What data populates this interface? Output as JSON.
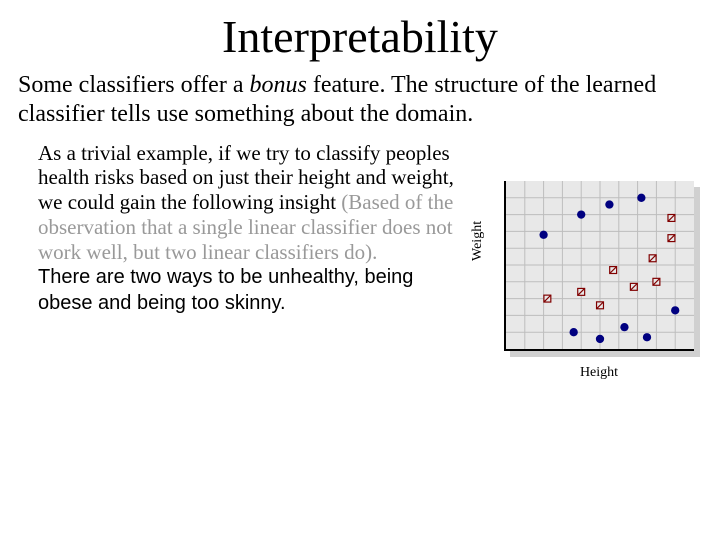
{
  "title": "Interpretability",
  "intro": {
    "part1": "Some classifiers offer a ",
    "bonus": "bonus",
    "part2": " feature. The structure of the learned classifier tells use something about the domain."
  },
  "example": {
    "black1": "As a trivial example, if we try to classify peoples health risks based on just their height and weight, we could gain the following insight ",
    "grey": "(Based of the observation that a single linear classifier does not work well, but two linear classifiers do).",
    "black2": "There are two ways to be unhealthy, being obese and being too skinny."
  },
  "chart": {
    "xlabel": "Height",
    "ylabel": "Weight",
    "background": "#e8e8e8",
    "shadow": "#d0d0d0",
    "grid_color": "#bdbdbd",
    "axis_color": "#000000",
    "nx": 10,
    "ny": 10,
    "solid_color": "#000080",
    "open_stroke": "#800000",
    "marker_r": 4.2,
    "open_size": 7,
    "solid_points": [
      [
        2.0,
        6.8
      ],
      [
        4.0,
        8.0
      ],
      [
        5.5,
        8.6
      ],
      [
        7.2,
        9.0
      ],
      [
        3.6,
        1.0
      ],
      [
        5.0,
        0.6
      ],
      [
        6.3,
        1.3
      ],
      [
        7.5,
        0.7
      ],
      [
        9.0,
        2.3
      ]
    ],
    "open_points": [
      [
        2.2,
        3.0
      ],
      [
        4.0,
        3.4
      ],
      [
        5.0,
        2.6
      ],
      [
        5.7,
        4.7
      ],
      [
        6.8,
        3.7
      ],
      [
        7.8,
        5.4
      ],
      [
        8.0,
        4.0
      ],
      [
        8.8,
        6.6
      ],
      [
        8.8,
        7.8
      ]
    ]
  }
}
